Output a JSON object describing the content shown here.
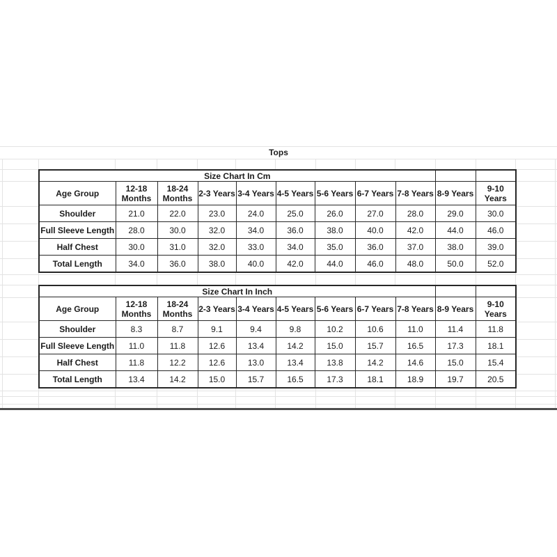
{
  "page_title": "Tops",
  "tables": [
    {
      "title": "Size Chart In Cm",
      "title_span": 9,
      "columns": [
        "Age Group",
        "12-18\nMonths",
        "18-24\nMonths",
        "2-3 Years",
        "3-4 Years",
        "4-5 Years",
        "5-6 Years",
        "6-7 Years",
        "7-8 Years",
        "8-9 Years",
        "9-10\nYears"
      ],
      "rows": [
        {
          "label": "Shoulder",
          "values": [
            "21.0",
            "22.0",
            "23.0",
            "24.0",
            "25.0",
            "26.0",
            "27.0",
            "28.0",
            "29.0",
            "30.0"
          ]
        },
        {
          "label": "Full Sleeve Length",
          "values": [
            "28.0",
            "30.0",
            "32.0",
            "34.0",
            "36.0",
            "38.0",
            "40.0",
            "42.0",
            "44.0",
            "46.0"
          ]
        },
        {
          "label": "Half Chest",
          "values": [
            "30.0",
            "31.0",
            "32.0",
            "33.0",
            "34.0",
            "35.0",
            "36.0",
            "37.0",
            "38.0",
            "39.0"
          ]
        },
        {
          "label": "Total Length",
          "values": [
            "34.0",
            "36.0",
            "38.0",
            "40.0",
            "42.0",
            "44.0",
            "46.0",
            "48.0",
            "50.0",
            "52.0"
          ]
        }
      ]
    },
    {
      "title": "Size Chart In Inch",
      "title_span": 9,
      "columns": [
        "Age Group",
        "12-18\nMonths",
        "18-24\nMonths",
        "2-3 Years",
        "3-4 Years",
        "4-5 Years",
        "5-6 Years",
        "6-7 Years",
        "7-8 Years",
        "8-9 Years",
        "9-10\nYears"
      ],
      "rows": [
        {
          "label": "Shoulder",
          "values": [
            "8.3",
            "8.7",
            "9.1",
            "9.4",
            "9.8",
            "10.2",
            "10.6",
            "11.0",
            "11.4",
            "11.8"
          ]
        },
        {
          "label": "Full Sleeve Length",
          "values": [
            "11.0",
            "11.8",
            "12.6",
            "13.4",
            "14.2",
            "15.0",
            "15.7",
            "16.5",
            "17.3",
            "18.1"
          ]
        },
        {
          "label": "Half Chest",
          "values": [
            "11.8",
            "12.2",
            "12.6",
            "13.0",
            "13.4",
            "13.8",
            "14.2",
            "14.6",
            "15.0",
            "15.4"
          ]
        },
        {
          "label": "Total Length",
          "values": [
            "13.4",
            "14.2",
            "15.0",
            "15.7",
            "16.5",
            "17.3",
            "18.1",
            "18.9",
            "19.7",
            "20.5"
          ]
        }
      ]
    }
  ],
  "colors": {
    "background": "#ffffff",
    "table_border": "#262626",
    "grid_line": "#e3e3e3",
    "bottom_bar": "#4d4d4d",
    "text": "#1c1c1c"
  }
}
